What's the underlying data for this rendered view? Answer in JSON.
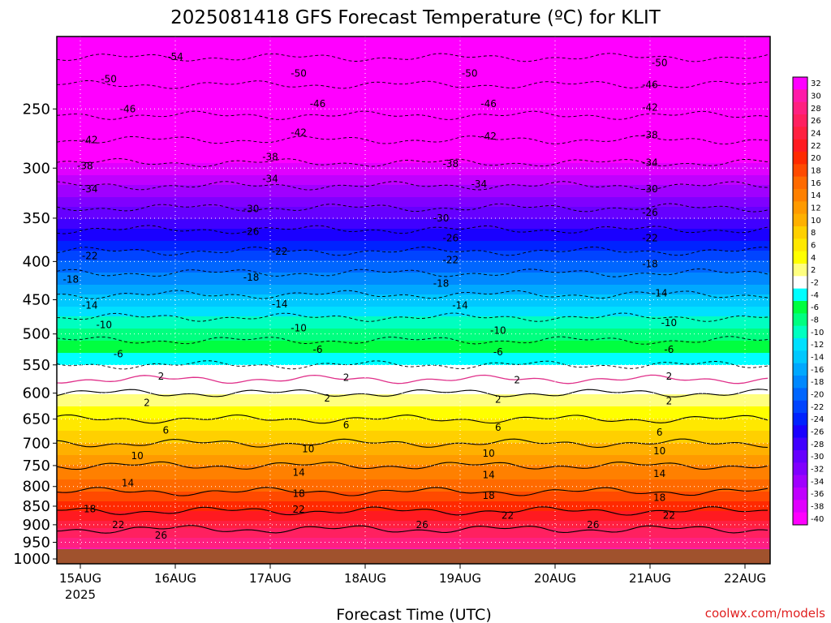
{
  "chart_data": {
    "type": "heatmap",
    "title": "2025081418 GFS Forecast Temperature (ºC) for KLIT",
    "xlabel": "Forecast Time (UTC)",
    "ylabel": "",
    "x_ticks": [
      "15AUG",
      "16AUG",
      "17AUG",
      "18AUG",
      "19AUG",
      "20AUG",
      "21AUG",
      "22AUG"
    ],
    "x_year_label": "2025",
    "y_ticks": [
      250,
      300,
      350,
      400,
      450,
      500,
      550,
      600,
      650,
      700,
      750,
      800,
      850,
      900,
      950,
      1000
    ],
    "y_axis": "pressure (hPa), log scale, inverted",
    "colorbar": {
      "levels": [
        32,
        30,
        28,
        26,
        24,
        22,
        20,
        18,
        16,
        14,
        12,
        10,
        8,
        6,
        4,
        2,
        -2,
        -4,
        -6,
        -8,
        -10,
        -12,
        -14,
        -16,
        -18,
        -20,
        -22,
        -24,
        -26,
        -28,
        -30,
        -32,
        -34,
        -36,
        -38,
        -40
      ],
      "colors": [
        "#ff00ff",
        "#ff1aa8",
        "#ff2080",
        "#ff2060",
        "#ff2040",
        "#ff1a20",
        "#ff2a00",
        "#ff4a00",
        "#ff6a00",
        "#ff8000",
        "#ff9a00",
        "#ffb000",
        "#ffd000",
        "#ffe800",
        "#ffff00",
        "#ffff80",
        "#ffffff",
        "#00ffff",
        "#00ff40",
        "#00ff80",
        "#00ffc0",
        "#00e0ff",
        "#00c8ff",
        "#00a8ff",
        "#0088ff",
        "#0066ff",
        "#0044ff",
        "#0022ff",
        "#1a00ff",
        "#4000ff",
        "#6600ff",
        "#8000ff",
        "#a000ff",
        "#c000ff",
        "#e000ff",
        "#ff00ff"
      ]
    },
    "contour_labels": [
      {
        "x": 1.0,
        "p": 213,
        "label": "-54"
      },
      {
        "x": 0.3,
        "p": 228,
        "label": "-50"
      },
      {
        "x": 2.3,
        "p": 224,
        "label": "-50"
      },
      {
        "x": 4.1,
        "p": 224,
        "label": "-50"
      },
      {
        "x": 6.1,
        "p": 217,
        "label": "-50"
      },
      {
        "x": 0.5,
        "p": 250,
        "label": "-46"
      },
      {
        "x": 2.5,
        "p": 246,
        "label": "-46"
      },
      {
        "x": 4.3,
        "p": 246,
        "label": "-46"
      },
      {
        "x": 6.0,
        "p": 232,
        "label": "-46"
      },
      {
        "x": 0.1,
        "p": 275,
        "label": "-42"
      },
      {
        "x": 2.3,
        "p": 269,
        "label": "-42"
      },
      {
        "x": 4.3,
        "p": 272,
        "label": "-42"
      },
      {
        "x": 6.0,
        "p": 249,
        "label": "-42"
      },
      {
        "x": 0.05,
        "p": 298,
        "label": "-38"
      },
      {
        "x": 2.0,
        "p": 290,
        "label": "-38"
      },
      {
        "x": 3.9,
        "p": 296,
        "label": "-38"
      },
      {
        "x": 6.0,
        "p": 271,
        "label": "-38"
      },
      {
        "x": 0.1,
        "p": 320,
        "label": "-34"
      },
      {
        "x": 2.0,
        "p": 310,
        "label": "-34"
      },
      {
        "x": 4.2,
        "p": 315,
        "label": "-34"
      },
      {
        "x": 6.0,
        "p": 295,
        "label": "-34"
      },
      {
        "x": 1.8,
        "p": 340,
        "label": "-30"
      },
      {
        "x": 3.8,
        "p": 350,
        "label": "-30"
      },
      {
        "x": 6.0,
        "p": 320,
        "label": "-30"
      },
      {
        "x": 1.8,
        "p": 365,
        "label": "-26"
      },
      {
        "x": 3.9,
        "p": 372,
        "label": "-26"
      },
      {
        "x": 6.0,
        "p": 344,
        "label": "-26"
      },
      {
        "x": 0.1,
        "p": 393,
        "label": "-22"
      },
      {
        "x": 2.1,
        "p": 388,
        "label": "-22"
      },
      {
        "x": 3.9,
        "p": 398,
        "label": "-22"
      },
      {
        "x": 6.0,
        "p": 372,
        "label": "-22"
      },
      {
        "x": -0.1,
        "p": 423,
        "label": "-18"
      },
      {
        "x": 1.8,
        "p": 420,
        "label": "-18"
      },
      {
        "x": 3.8,
        "p": 428,
        "label": "-18"
      },
      {
        "x": 6.0,
        "p": 403,
        "label": "-18"
      },
      {
        "x": 0.1,
        "p": 458,
        "label": "-14"
      },
      {
        "x": 2.1,
        "p": 456,
        "label": "-14"
      },
      {
        "x": 4.0,
        "p": 458,
        "label": "-14"
      },
      {
        "x": 6.1,
        "p": 441,
        "label": "-14"
      },
      {
        "x": 0.25,
        "p": 486,
        "label": "-10"
      },
      {
        "x": 2.3,
        "p": 491,
        "label": "-10"
      },
      {
        "x": 4.4,
        "p": 495,
        "label": "-10"
      },
      {
        "x": 6.2,
        "p": 483,
        "label": "-10"
      },
      {
        "x": 0.4,
        "p": 532,
        "label": "-6"
      },
      {
        "x": 2.5,
        "p": 525,
        "label": "-6"
      },
      {
        "x": 4.4,
        "p": 529,
        "label": "-6"
      },
      {
        "x": 6.2,
        "p": 525,
        "label": "-6"
      },
      {
        "x": 0.85,
        "p": 570,
        "label": "2"
      },
      {
        "x": 2.8,
        "p": 572,
        "label": "2"
      },
      {
        "x": 4.6,
        "p": 576,
        "label": "2"
      },
      {
        "x": 6.2,
        "p": 570,
        "label": "2"
      },
      {
        "x": 0.7,
        "p": 618,
        "label": "2"
      },
      {
        "x": 2.6,
        "p": 610,
        "label": "2"
      },
      {
        "x": 4.4,
        "p": 612,
        "label": "2"
      },
      {
        "x": 6.2,
        "p": 615,
        "label": "2"
      },
      {
        "x": 0.9,
        "p": 673,
        "label": "6"
      },
      {
        "x": 2.8,
        "p": 662,
        "label": "6"
      },
      {
        "x": 4.4,
        "p": 667,
        "label": "6"
      },
      {
        "x": 6.1,
        "p": 677,
        "label": "6"
      },
      {
        "x": 0.6,
        "p": 728,
        "label": "10"
      },
      {
        "x": 2.4,
        "p": 713,
        "label": "10"
      },
      {
        "x": 4.3,
        "p": 723,
        "label": "10"
      },
      {
        "x": 6.1,
        "p": 717,
        "label": "10"
      },
      {
        "x": 0.5,
        "p": 792,
        "label": "14"
      },
      {
        "x": 2.3,
        "p": 766,
        "label": "14"
      },
      {
        "x": 4.3,
        "p": 772,
        "label": "14"
      },
      {
        "x": 6.1,
        "p": 769,
        "label": "14"
      },
      {
        "x": 0.1,
        "p": 857,
        "label": "18"
      },
      {
        "x": 2.3,
        "p": 818,
        "label": "18"
      },
      {
        "x": 4.3,
        "p": 823,
        "label": "18"
      },
      {
        "x": 6.1,
        "p": 828,
        "label": "18"
      },
      {
        "x": 0.4,
        "p": 900,
        "label": "22"
      },
      {
        "x": 2.3,
        "p": 858,
        "label": "22"
      },
      {
        "x": 4.5,
        "p": 875,
        "label": "22"
      },
      {
        "x": 6.2,
        "p": 875,
        "label": "22"
      },
      {
        "x": 0.85,
        "p": 930,
        "label": "26"
      },
      {
        "x": 3.6,
        "p": 900,
        "label": "26"
      },
      {
        "x": 5.4,
        "p": 900,
        "label": "26"
      }
    ]
  },
  "credit": "coolwx.com/models",
  "colors": {
    "ground": "#a0522d",
    "freezing_line": "#e0308a",
    "background": "#ffffff"
  }
}
